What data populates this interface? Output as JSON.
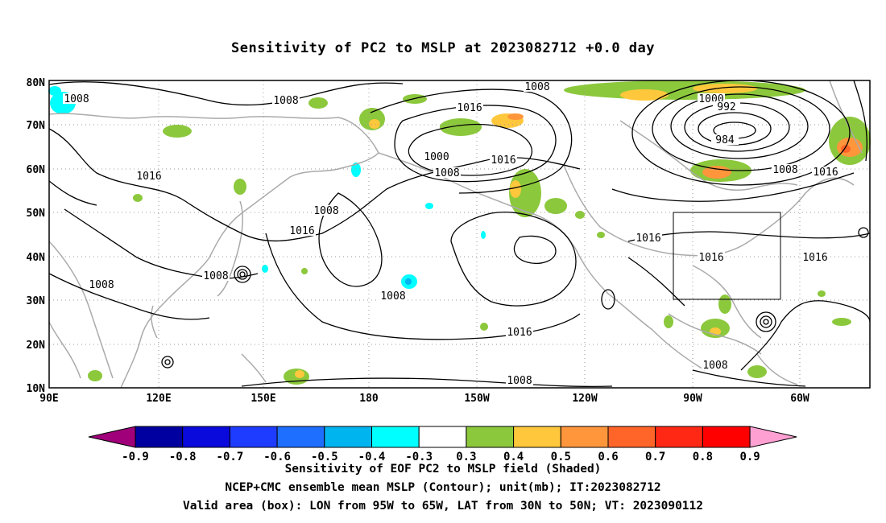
{
  "title": "Sensitivity of PC2 to MSLP at 2023082712 +0.0 day",
  "map": {
    "lat_labels": [
      "80N",
      "70N",
      "60N",
      "50N",
      "40N",
      "30N",
      "20N",
      "10N"
    ],
    "lon_labels": [
      "90E",
      "120E",
      "150E",
      "180",
      "150W",
      "120W",
      "90W",
      "60W"
    ],
    "lat_range": [
      10,
      80
    ],
    "lon_range": [
      "90E",
      "50W"
    ],
    "grid": "dotted",
    "contour_interval_mb": 8,
    "contour_labels": [
      "1008",
      "1008",
      "1016",
      "1008",
      "1000",
      "1008",
      "1016",
      "1016",
      "1000",
      "992",
      "984",
      "1008",
      "1016",
      "1008",
      "1016",
      "1016",
      "1016",
      "1016",
      "1008",
      "1016",
      "1008",
      "1008"
    ],
    "valid_box": {
      "lon": [
        "95W",
        "65W"
      ],
      "lat": [
        "30N",
        "50N"
      ]
    },
    "colors": {
      "coast": "#aaaaaa",
      "contour": "#000000",
      "box": "#000000"
    }
  },
  "colorbar": {
    "labels": [
      "-0.9",
      "-0.8",
      "-0.7",
      "-0.6",
      "-0.5",
      "-0.4",
      "-0.3",
      "0.3",
      "0.4",
      "0.5",
      "0.6",
      "0.7",
      "0.8",
      "0.9"
    ],
    "colors": [
      "#a0007a",
      "#0000a0",
      "#0a0adc",
      "#1e3cff",
      "#1e6eff",
      "#00b4f0",
      "#00ffff",
      "#ffffff",
      "#8cc83c",
      "#ffc83c",
      "#ff963c",
      "#ff6428",
      "#ff2814",
      "#ff0000",
      "#ffa0d2"
    ]
  },
  "captions": [
    "Sensitivity of EOF PC2 to MSLP field (Shaded)",
    "NCEP+CMC ensemble mean MSLP (Contour); unit(mb); IT:2023082712",
    "Valid area (box): LON from 95W to 65W, LAT from 30N to 50N; VT: 2023090112"
  ]
}
